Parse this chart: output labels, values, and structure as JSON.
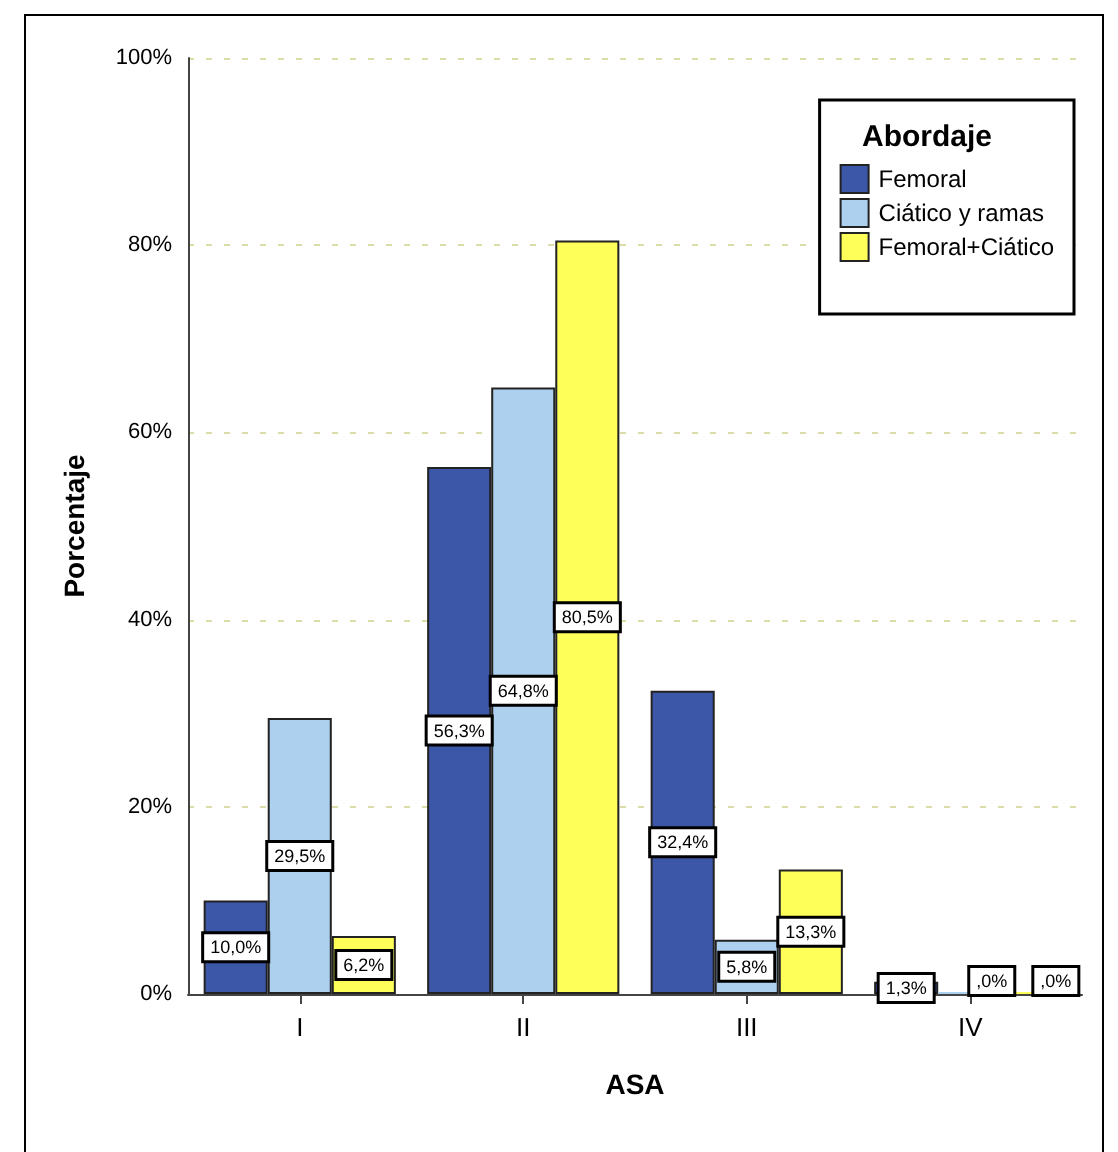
{
  "chart_data": {
    "type": "bar",
    "xlabel": "ASA",
    "ylabel": "Porcentaje",
    "legend_title": "Abordaje",
    "categories": [
      "I",
      "II",
      "III",
      "IV"
    ],
    "series": [
      {
        "name": "Femoral",
        "color": "#3c56a8",
        "values": [
          10.0,
          56.3,
          32.4,
          1.3
        ],
        "value_labels": [
          "10,0%",
          "56,3%",
          "32,4%",
          "1,3%"
        ]
      },
      {
        "name": "Ciático y ramas",
        "color": "#acd0ee",
        "values": [
          29.5,
          64.8,
          5.8,
          0
        ],
        "value_labels": [
          "29,5%",
          "64,8%",
          "5,8%",
          ",0%"
        ]
      },
      {
        "name": "Femoral+Ciático",
        "color": "#ffff5a",
        "values": [
          6.2,
          80.5,
          13.3,
          0
        ],
        "value_labels": [
          "6,2%",
          "80,5%",
          "13,3%",
          ",0%"
        ]
      }
    ],
    "ylim": [
      0,
      100
    ],
    "yticks": [
      {
        "value": 0,
        "label": "0%"
      },
      {
        "value": 20,
        "label": "20%"
      },
      {
        "value": 40,
        "label": "40%"
      },
      {
        "value": 60,
        "label": "60%"
      },
      {
        "value": 80,
        "label": "80%"
      },
      {
        "value": 100,
        "label": "100%"
      }
    ],
    "grid": "y",
    "legend": "top right"
  }
}
